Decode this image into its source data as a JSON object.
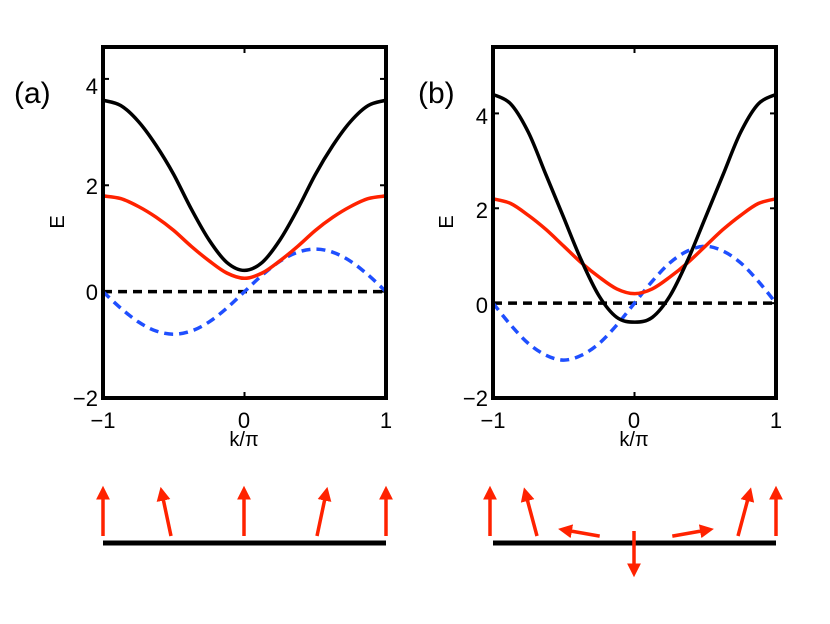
{
  "colors": {
    "upper": "#000000",
    "lower": "#ff2200",
    "dashed_blue": "#1f4fff",
    "zero_line": "#000000",
    "spin": "#ff2200",
    "chain": "#000000"
  },
  "chart_data": [
    {
      "type": "line",
      "panel_label": "(a)",
      "xlabel": "k/π",
      "ylabel": "E",
      "xlim": [
        -1,
        1
      ],
      "ylim": [
        -2,
        4.6
      ],
      "xticks": [
        -1,
        0,
        1
      ],
      "xtick_labels": [
        "−1",
        "0",
        "1"
      ],
      "yticks": [
        -2,
        0,
        2,
        4
      ],
      "ytick_labels": [
        "−2",
        "0",
        "2",
        "4"
      ],
      "x": [
        -1,
        -0.875,
        -0.75,
        -0.625,
        -0.5,
        -0.375,
        -0.25,
        -0.125,
        0,
        0.125,
        0.25,
        0.375,
        0.5,
        0.625,
        0.75,
        0.875,
        1
      ],
      "series": [
        {
          "name": "upper band",
          "style": "solid",
          "color": "#000000",
          "values": [
            3.6,
            3.5,
            3.2,
            2.75,
            2.2,
            1.55,
            0.97,
            0.55,
            0.4,
            0.55,
            0.97,
            1.55,
            2.2,
            2.75,
            3.2,
            3.5,
            3.6
          ]
        },
        {
          "name": "lower band",
          "style": "solid",
          "color": "#ff2200",
          "values": [
            1.8,
            1.75,
            1.6,
            1.4,
            1.15,
            0.85,
            0.58,
            0.35,
            0.25,
            0.35,
            0.58,
            0.85,
            1.15,
            1.4,
            1.6,
            1.75,
            1.8
          ]
        },
        {
          "name": "dashed blue",
          "style": "dashed",
          "color": "#1f4fff",
          "values": [
            0,
            -0.31,
            -0.57,
            -0.74,
            -0.8,
            -0.74,
            -0.57,
            -0.31,
            0,
            0.31,
            0.57,
            0.74,
            0.8,
            0.74,
            0.57,
            0.31,
            0
          ]
        },
        {
          "name": "zero line",
          "style": "dashed",
          "color": "#000000",
          "values": [
            0,
            0,
            0,
            0,
            0,
            0,
            0,
            0,
            0,
            0,
            0,
            0,
            0,
            0,
            0,
            0,
            0
          ]
        }
      ],
      "spin_angles_deg": [
        0,
        -12,
        0,
        12,
        0
      ]
    },
    {
      "type": "line",
      "panel_label": "(b)",
      "xlabel": "k/π",
      "ylabel": "E",
      "xlim": [
        -1,
        1
      ],
      "ylim": [
        -2,
        5.4
      ],
      "xticks": [
        -1,
        0,
        1
      ],
      "xtick_labels": [
        "−1",
        "0",
        "1"
      ],
      "yticks": [
        -2,
        0,
        2,
        4
      ],
      "ytick_labels": [
        "−2",
        "0",
        "2",
        "4"
      ],
      "x": [
        -1,
        -0.875,
        -0.75,
        -0.625,
        -0.5,
        -0.375,
        -0.25,
        -0.125,
        0,
        0.125,
        0.25,
        0.375,
        0.5,
        0.625,
        0.75,
        0.875,
        1
      ],
      "series": [
        {
          "name": "upper band",
          "style": "solid",
          "color": "#000000",
          "values": [
            4.4,
            4.2,
            3.6,
            2.7,
            1.8,
            0.9,
            0.15,
            -0.3,
            -0.4,
            -0.3,
            0.15,
            0.9,
            1.8,
            2.7,
            3.6,
            4.2,
            4.4
          ]
        },
        {
          "name": "lower band",
          "style": "solid",
          "color": "#ff2200",
          "values": [
            2.2,
            2.1,
            1.85,
            1.55,
            1.2,
            0.85,
            0.55,
            0.3,
            0.2,
            0.3,
            0.55,
            0.85,
            1.2,
            1.55,
            1.85,
            2.1,
            2.2
          ]
        },
        {
          "name": "dashed blue",
          "style": "dashed",
          "color": "#1f4fff",
          "values": [
            0,
            -0.46,
            -0.85,
            -1.1,
            -1.2,
            -1.1,
            -0.85,
            -0.46,
            0,
            0.46,
            0.85,
            1.1,
            1.2,
            1.1,
            0.85,
            0.46,
            0
          ]
        },
        {
          "name": "zero line",
          "style": "dashed",
          "color": "#000000",
          "values": [
            0,
            0,
            0,
            0,
            0,
            0,
            0,
            0,
            0,
            0,
            0,
            0,
            0,
            0,
            0,
            0,
            0
          ]
        }
      ],
      "spin_angles_deg": [
        0,
        -15,
        -80,
        -180,
        80,
        15,
        0
      ]
    }
  ]
}
